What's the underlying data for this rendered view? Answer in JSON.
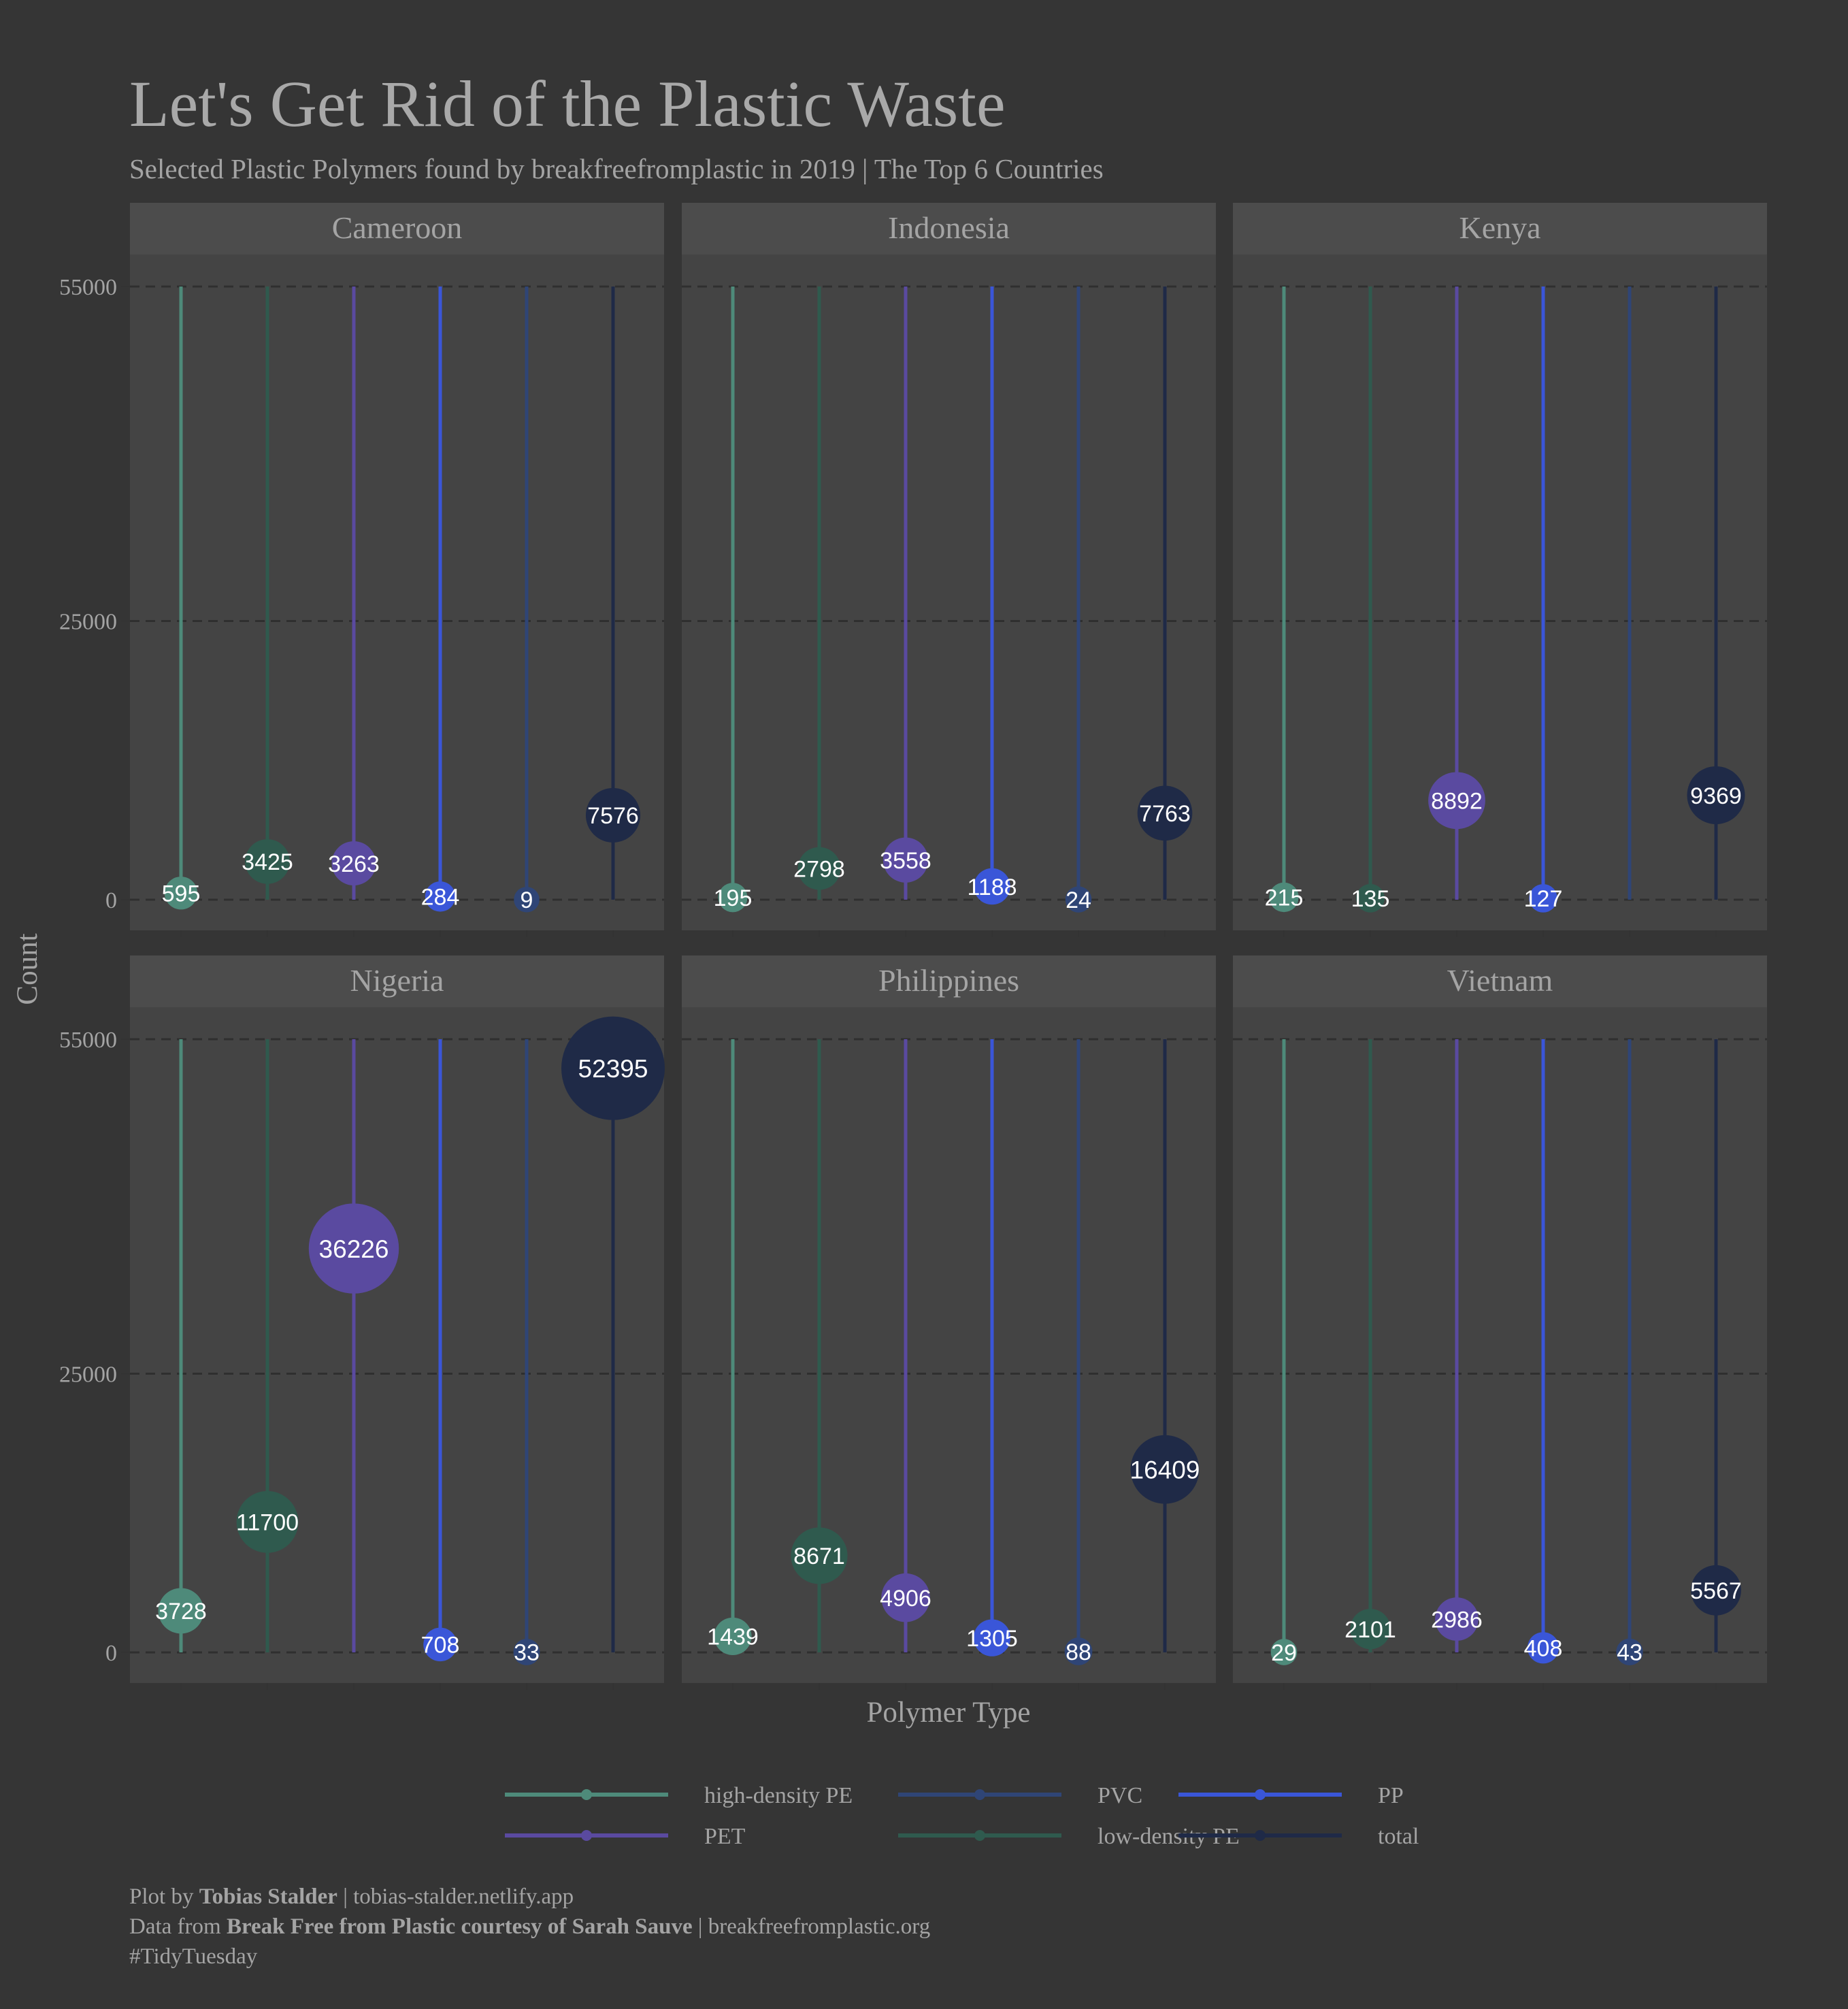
{
  "chart_data": {
    "type": "scatter",
    "title": "Let's Get Rid of the Plastic Waste",
    "subtitle": "Selected Plastic Polymers found by breakfreefromplastic in 2019 | The Top 6 Countries",
    "xlabel": "Polymer Type",
    "ylabel": "Count",
    "ylim": [
      0,
      55000
    ],
    "yticks": [
      0,
      25000,
      55000
    ],
    "grid": "dashed horizontal",
    "legend_position": "bottom",
    "categories": [
      "high-density PE",
      "low-density PE",
      "PET",
      "PP",
      "PVC",
      "total"
    ],
    "colors": {
      "high-density PE": "#4e8a7a",
      "low-density PE": "#2f5a4e",
      "PET": "#5a4aa0",
      "PP": "#3a56d8",
      "PVC": "#2f4576",
      "total": "#1f2a47"
    },
    "facets": [
      {
        "country": "Cameroon",
        "values": [
          595,
          3425,
          3263,
          284,
          9,
          7576
        ]
      },
      {
        "country": "Indonesia",
        "values": [
          195,
          2798,
          3558,
          1188,
          24,
          7763
        ]
      },
      {
        "country": "Kenya",
        "values": [
          215,
          135,
          8892,
          127,
          null,
          9369
        ]
      },
      {
        "country": "Nigeria",
        "values": [
          3728,
          11700,
          36226,
          708,
          33,
          52395
        ]
      },
      {
        "country": "Philippines",
        "values": [
          1439,
          8671,
          4906,
          1305,
          88,
          16409
        ]
      },
      {
        "country": "Vietnam",
        "values": [
          29,
          2101,
          2986,
          408,
          43,
          5567
        ]
      }
    ],
    "legend_order": [
      "high-density PE",
      "PET",
      "PVC",
      "low-density PE",
      "PP",
      "total"
    ]
  },
  "caption": {
    "line1_prefix": "Plot by ",
    "line1_bold": "Tobias Stalder",
    "line1_suffix": " | tobias-stalder.netlify.app",
    "line2_prefix": "Data from ",
    "line2_bold": "Break Free from Plastic courtesy of Sarah Sauve",
    "line2_suffix": " | breakfreefromplastic.org",
    "line3": "#TidyTuesday"
  },
  "colors": {
    "background": "#353535",
    "panel": "#444444",
    "strip": "#4c4c4c",
    "text": "#a4a4a4"
  }
}
